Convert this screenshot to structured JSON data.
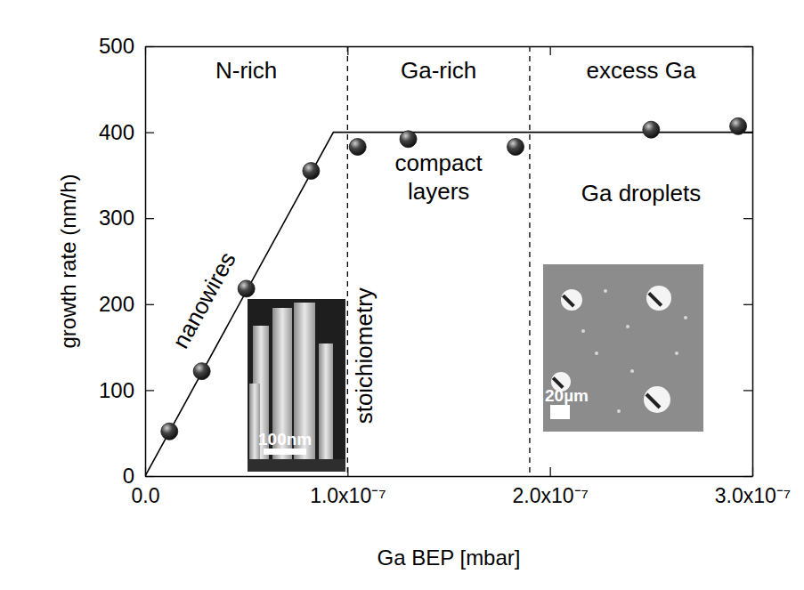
{
  "chart_data": {
    "type": "scatter",
    "x_label": "Ga BEP [mbar]",
    "y_label": "growth rate (nm/h)",
    "xlim": [
      0,
      3e-07
    ],
    "ylim": [
      0,
      500
    ],
    "xticks": [
      {
        "value": 0,
        "label": "0.0"
      },
      {
        "value": 1e-07,
        "label": "1.0x10⁻⁷"
      },
      {
        "value": 2e-07,
        "label": "2.0x10⁻⁷"
      },
      {
        "value": 3e-07,
        "label": "3.0x10⁻⁷"
      }
    ],
    "yticks": [
      0,
      100,
      200,
      300,
      400,
      500
    ],
    "series": [
      {
        "type": "scatter",
        "marker": "circle",
        "color": "#1a1a1a",
        "x": [
          1.2e-08,
          2.8e-08,
          5e-08,
          8.2e-08,
          1.05e-07,
          1.3e-07,
          1.83e-07,
          2.5e-07,
          2.93e-07
        ],
        "values": [
          52,
          122,
          218,
          355,
          383,
          392,
          383,
          403,
          407
        ]
      },
      {
        "type": "line",
        "line_style": "solid",
        "color": "#000000",
        "x": [
          0,
          9.3e-08,
          3e-07
        ],
        "values": [
          0,
          400,
          400
        ]
      }
    ],
    "vlines": [
      1e-07,
      1.9e-07
    ],
    "regions": [
      "N-rich",
      "Ga-rich",
      "excess Ga"
    ],
    "annotations": [
      "nanowires",
      "stoichiometry",
      "compact layers",
      "Ga droplets"
    ],
    "insets": [
      {
        "scale_bar": "100nm"
      },
      {
        "scale_bar": "20µm"
      }
    ]
  }
}
